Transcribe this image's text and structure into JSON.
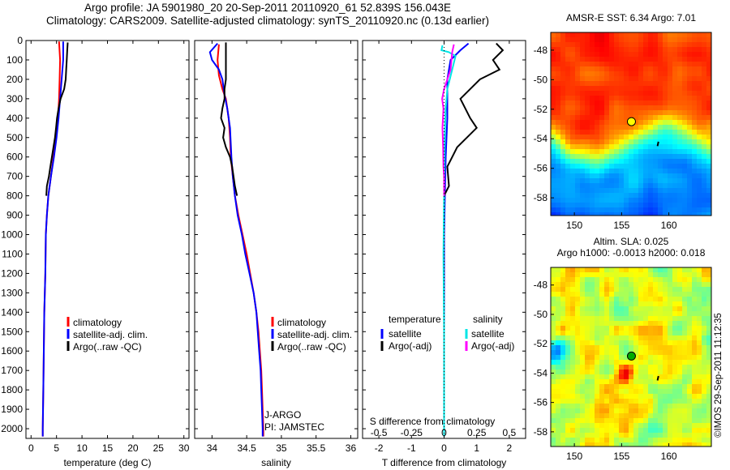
{
  "header": {
    "line1": "Argo profile: JA 5901980_20 20-Sep-2011 20110920_61 52.839S 156.043E",
    "line2": "Climatology: CARS2009. Satellite-adjusted climatology: synTS_20110920.nc (0.13d earlier)"
  },
  "stamp": "©IMOS 29-Sep-2011 11:12:35",
  "colors": {
    "climatology": "#ff0000",
    "satellite": "#0000ff",
    "argo": "#000000",
    "satellite_salinity": "#00e5e5",
    "argo_salinity": "#ff00ff"
  },
  "chart_data": [
    {
      "id": "temperature",
      "type": "line",
      "xlabel": "temperature (deg C)",
      "ylabel": "",
      "xlim": [
        -1,
        31
      ],
      "ylim": [
        2050,
        0
      ],
      "xticks": [
        0,
        5,
        10,
        15,
        20,
        25,
        30
      ],
      "yticks": [
        0,
        100,
        200,
        300,
        400,
        500,
        600,
        700,
        800,
        900,
        1000,
        1100,
        1200,
        1300,
        1400,
        1500,
        1600,
        1700,
        1800,
        1900,
        2000
      ],
      "legend": [
        "climatology",
        "satellite-adj. clim.",
        "Argo(..raw -QC)"
      ],
      "series": [
        {
          "name": "climatology",
          "color": "#ff0000",
          "points": [
            [
              5.5,
              5
            ],
            [
              5.7,
              100
            ],
            [
              5.6,
              200
            ],
            [
              5.5,
              300
            ],
            [
              5.3,
              400
            ],
            [
              4.9,
              500
            ],
            [
              4.4,
              600
            ],
            [
              3.9,
              700
            ],
            [
              3.4,
              800
            ],
            [
              3.1,
              900
            ],
            [
              2.9,
              1000
            ],
            [
              2.8,
              1200
            ],
            [
              2.6,
              1400
            ],
            [
              2.5,
              1600
            ],
            [
              2.4,
              1800
            ],
            [
              2.3,
              2000
            ],
            [
              2.3,
              2040
            ]
          ]
        },
        {
          "name": "satellite-adj. clim.",
          "color": "#0000ff",
          "points": [
            [
              6.3,
              5
            ],
            [
              6.3,
              100
            ],
            [
              6.0,
              200
            ],
            [
              5.7,
              300
            ],
            [
              5.4,
              400
            ],
            [
              5.0,
              500
            ],
            [
              4.5,
              600
            ],
            [
              3.9,
              700
            ],
            [
              3.4,
              800
            ],
            [
              3.1,
              900
            ],
            [
              2.9,
              1000
            ],
            [
              2.8,
              1200
            ],
            [
              2.6,
              1400
            ],
            [
              2.5,
              1600
            ],
            [
              2.4,
              1800
            ],
            [
              2.3,
              2000
            ],
            [
              2.3,
              2040
            ]
          ]
        },
        {
          "name": "Argo(..raw -QC)",
          "color": "#000000",
          "points": [
            [
              7.2,
              10
            ],
            [
              7.1,
              50
            ],
            [
              7.0,
              100
            ],
            [
              6.9,
              150
            ],
            [
              6.8,
              200
            ],
            [
              6.5,
              250
            ],
            [
              5.8,
              300
            ],
            [
              5.4,
              350
            ],
            [
              5.1,
              400
            ],
            [
              4.9,
              450
            ],
            [
              4.7,
              500
            ],
            [
              4.4,
              550
            ],
            [
              4.1,
              600
            ],
            [
              3.8,
              650
            ],
            [
              3.5,
              700
            ],
            [
              3.1,
              750
            ],
            [
              3.0,
              800
            ]
          ]
        }
      ]
    },
    {
      "id": "salinity",
      "type": "line",
      "xlabel": "salinity",
      "ylabel": "",
      "xlim": [
        33.75,
        36.1
      ],
      "ylim": [
        2050,
        0
      ],
      "xticks": [
        34,
        34.5,
        35,
        35.5,
        36
      ],
      "legend": [
        "climatology",
        "satellite-adj. clim.",
        "Argo(..raw -QC)"
      ],
      "annotation": [
        "J-ARGO",
        "PI: JAMSTEC"
      ],
      "series": [
        {
          "name": "climatology",
          "color": "#ff0000",
          "points": [
            [
              34.1,
              20
            ],
            [
              34.08,
              100
            ],
            [
              34.1,
              180
            ],
            [
              34.15,
              250
            ],
            [
              34.2,
              300
            ],
            [
              34.24,
              400
            ],
            [
              34.26,
              500
            ],
            [
              34.27,
              600
            ],
            [
              34.3,
              700
            ],
            [
              34.33,
              800
            ],
            [
              34.38,
              900
            ],
            [
              34.44,
              1000
            ],
            [
              34.5,
              1100
            ],
            [
              34.55,
              1200
            ],
            [
              34.6,
              1300
            ],
            [
              34.64,
              1400
            ],
            [
              34.67,
              1500
            ],
            [
              34.69,
              1600
            ],
            [
              34.71,
              1700
            ],
            [
              34.72,
              1800
            ],
            [
              34.73,
              1900
            ],
            [
              34.74,
              2000
            ],
            [
              34.74,
              2040
            ]
          ]
        },
        {
          "name": "satellite-adj. clim.",
          "color": "#0000ff",
          "points": [
            [
              34.08,
              15
            ],
            [
              33.97,
              60
            ],
            [
              34.0,
              100
            ],
            [
              34.1,
              150
            ],
            [
              34.15,
              200
            ],
            [
              34.18,
              280
            ],
            [
              34.22,
              350
            ],
            [
              34.26,
              450
            ],
            [
              34.28,
              600
            ],
            [
              34.3,
              700
            ],
            [
              34.33,
              800
            ],
            [
              34.37,
              900
            ],
            [
              34.43,
              1000
            ],
            [
              34.48,
              1100
            ],
            [
              34.54,
              1200
            ],
            [
              34.6,
              1300
            ],
            [
              34.64,
              1400
            ],
            [
              34.66,
              1500
            ],
            [
              34.68,
              1600
            ],
            [
              34.7,
              1700
            ],
            [
              34.71,
              1800
            ],
            [
              34.72,
              1900
            ],
            [
              34.73,
              2000
            ],
            [
              34.73,
              2040
            ]
          ]
        },
        {
          "name": "Argo(..raw -QC)",
          "color": "#000000",
          "points": [
            [
              34.2,
              10
            ],
            [
              34.2,
              100
            ],
            [
              34.2,
              200
            ],
            [
              34.18,
              250
            ],
            [
              34.18,
              300
            ],
            [
              34.15,
              350
            ],
            [
              34.13,
              400
            ],
            [
              34.18,
              450
            ],
            [
              34.16,
              500
            ],
            [
              34.2,
              550
            ],
            [
              34.26,
              600
            ],
            [
              34.29,
              650
            ],
            [
              34.31,
              700
            ],
            [
              34.33,
              750
            ],
            [
              34.36,
              800
            ]
          ]
        }
      ]
    },
    {
      "id": "differences",
      "type": "line",
      "xlabel": "T difference from climatology",
      "xlabel_top": "S difference from climatology",
      "xlim": [
        -2.5,
        2.5
      ],
      "ylim": [
        2050,
        0
      ],
      "xticks": [
        -2,
        -1,
        0,
        1,
        2
      ],
      "xticks_s": [
        -0.5,
        -0.25,
        0,
        0.25,
        0.5
      ],
      "legend_titles": [
        "temperature",
        "salinity"
      ],
      "legend_t": [
        "satellite",
        "Argo(-adj)"
      ],
      "legend_s": [
        "satellite",
        "Argo(-adj)"
      ],
      "series": [
        {
          "name": "T satellite",
          "color": "#0000ff",
          "points": [
            [
              0.75,
              15
            ],
            [
              0.5,
              50
            ],
            [
              0.2,
              100
            ],
            [
              0.1,
              200
            ],
            [
              0.1,
              300
            ],
            [
              0.1,
              400
            ],
            [
              0.05,
              600
            ],
            [
              0,
              1000
            ],
            [
              0,
              1500
            ],
            [
              0,
              2040
            ]
          ]
        },
        {
          "name": "T Argo(-adj)",
          "color": "#000000",
          "points": [
            [
              1.6,
              15
            ],
            [
              1.8,
              50
            ],
            [
              1.5,
              100
            ],
            [
              1.7,
              150
            ],
            [
              1.1,
              200
            ],
            [
              0.5,
              300
            ],
            [
              0.8,
              400
            ],
            [
              1.0,
              450
            ],
            [
              0.4,
              550
            ],
            [
              0.1,
              650
            ],
            [
              0.15,
              750
            ],
            [
              0,
              800
            ]
          ]
        },
        {
          "name": "S satellite",
          "color": "#00e5e5",
          "points": [
            [
              -0.05,
              25
            ],
            [
              -0.08,
              50
            ],
            [
              0.15,
              60
            ],
            [
              0.35,
              80
            ],
            [
              0.25,
              150
            ],
            [
              0.1,
              250
            ],
            [
              0.05,
              350
            ],
            [
              0.02,
              500
            ],
            [
              0,
              800
            ],
            [
              -0.02,
              1100
            ],
            [
              0,
              1500
            ],
            [
              0,
              2040
            ]
          ]
        },
        {
          "name": "S Argo(-adj)",
          "color": "#ff00ff",
          "points": [
            [
              0.3,
              20
            ],
            [
              0.25,
              60
            ],
            [
              0.2,
              150
            ],
            [
              0.0,
              250
            ],
            [
              -0.06,
              300
            ],
            [
              -0.02,
              350
            ],
            [
              -0.05,
              450
            ],
            [
              -0.03,
              550
            ],
            [
              -0.02,
              650
            ],
            [
              0,
              700
            ],
            [
              0,
              800
            ]
          ]
        }
      ]
    },
    {
      "id": "sst-map",
      "type": "heatmap",
      "title": "AMSR-E SST: 6.34 Argo: 7.01",
      "xlim": [
        147.5,
        164.5
      ],
      "ylim": [
        -59.2,
        -46.8
      ],
      "xticks": [
        150,
        155,
        160
      ],
      "yticks": [
        -48,
        -50,
        -52,
        -54,
        -56,
        -58
      ],
      "marker": {
        "lon": 156.04,
        "lat": -52.84,
        "fill": "#ffff00"
      }
    },
    {
      "id": "sla-map",
      "type": "heatmap",
      "title_line1": "Altim. SLA: 0.025",
      "title_line2": "Argo h1000: -0.0013 h2000: 0.018",
      "xlim": [
        147.5,
        164.5
      ],
      "ylim": [
        -59,
        -46.8
      ],
      "xticks": [
        150,
        155,
        160
      ],
      "yticks": [
        -48,
        -50,
        -52,
        -54,
        -56,
        -58
      ],
      "marker": {
        "lon": 156.04,
        "lat": -52.84,
        "fill": "#00aa00"
      }
    }
  ]
}
